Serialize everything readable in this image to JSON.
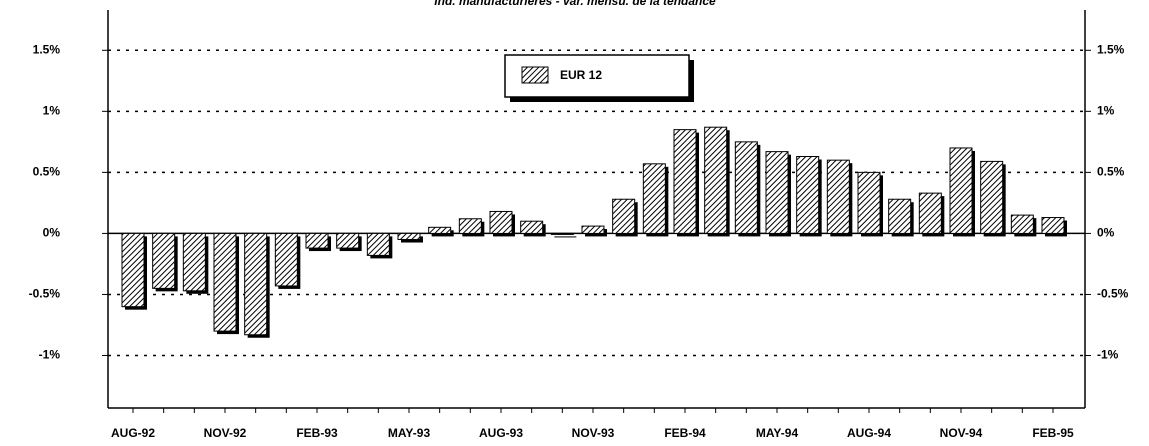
{
  "chart_data": {
    "type": "bar",
    "title": "Ind. manufacturières - var. mensu. de la tendance",
    "categories": [
      "AUG-92",
      null,
      null,
      "NOV-92",
      null,
      null,
      "FEB-93",
      null,
      null,
      "MAY-93",
      null,
      null,
      "AUG-93",
      null,
      null,
      "NOV-93",
      null,
      null,
      "FEB-94",
      null,
      null,
      "MAY-94",
      null,
      null,
      "AUG-94",
      null,
      null,
      "NOV-94",
      null,
      null,
      "FEB-95"
    ],
    "series": [
      {
        "name": "EUR 12",
        "color": "#888888",
        "values": [
          -0.6,
          -0.45,
          -0.47,
          -0.8,
          -0.83,
          -0.43,
          -0.12,
          -0.12,
          -0.18,
          -0.05,
          0.05,
          0.12,
          0.18,
          0.1,
          0.0,
          0.06,
          0.28,
          0.57,
          0.85,
          0.87,
          0.75,
          0.67,
          0.63,
          0.6,
          0.5,
          0.28,
          0.33,
          0.7,
          0.59,
          0.15,
          0.13
        ]
      }
    ],
    "ylim": [
      -1.43,
      1.83
    ],
    "yticks": [
      {
        "value": -1,
        "label": "-1%"
      },
      {
        "value": -0.5,
        "label": "-0.5%"
      },
      {
        "value": 0,
        "label": "0%"
      },
      {
        "value": 0.5,
        "label": "0.5%"
      },
      {
        "value": 1,
        "label": "1%"
      },
      {
        "value": 1.5,
        "label": "1.5%"
      }
    ],
    "grid": true
  }
}
